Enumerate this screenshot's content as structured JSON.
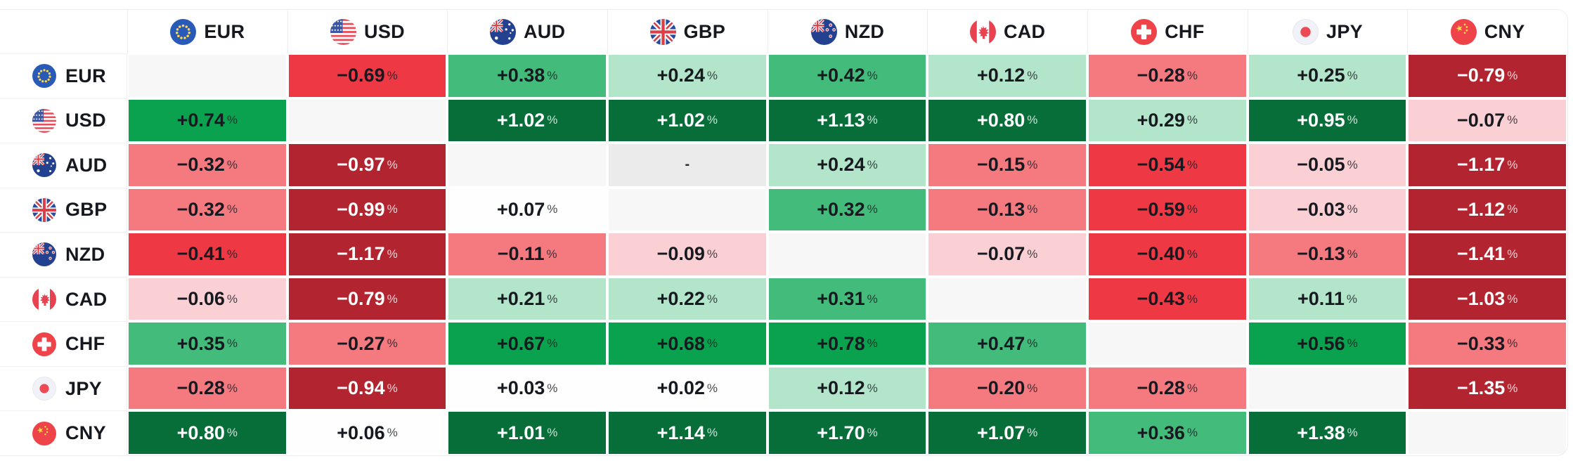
{
  "unit": "%",
  "currencies": [
    "EUR",
    "USD",
    "AUD",
    "GBP",
    "NZD",
    "CAD",
    "CHF",
    "JPY",
    "CNY"
  ],
  "flag_icons": {
    "EUR": "eur-flag-icon",
    "USD": "usd-flag-icon",
    "AUD": "aud-flag-icon",
    "GBP": "gbp-flag-icon",
    "NZD": "nzd-flag-icon",
    "CAD": "cad-flag-icon",
    "CHF": "chf-flag-icon",
    "JPY": "jpy-flag-icon",
    "CNY": "cny-flag-icon"
  },
  "chart_data": {
    "type": "heatmap",
    "unit": "%",
    "columns": [
      "EUR",
      "USD",
      "AUD",
      "GBP",
      "NZD",
      "CAD",
      "CHF",
      "JPY",
      "CNY"
    ],
    "rows": [
      "EUR",
      "USD",
      "AUD",
      "GBP",
      "NZD",
      "CAD",
      "CHF",
      "JPY",
      "CNY"
    ],
    "values": [
      [
        null,
        -0.69,
        0.38,
        0.24,
        0.42,
        0.12,
        -0.28,
        0.25,
        -0.79
      ],
      [
        0.74,
        null,
        1.02,
        1.02,
        1.13,
        0.8,
        0.29,
        0.95,
        -0.07
      ],
      [
        -0.32,
        -0.97,
        null,
        "-",
        0.24,
        -0.15,
        -0.54,
        -0.05,
        -1.17
      ],
      [
        -0.32,
        -0.99,
        0.07,
        null,
        0.32,
        -0.13,
        -0.59,
        -0.03,
        -1.12
      ],
      [
        -0.41,
        -1.17,
        -0.11,
        -0.09,
        null,
        -0.07,
        -0.4,
        -0.13,
        -1.41
      ],
      [
        -0.06,
        -0.79,
        0.21,
        0.22,
        0.31,
        null,
        -0.43,
        0.11,
        -1.03
      ],
      [
        0.35,
        -0.27,
        0.67,
        0.68,
        0.78,
        0.47,
        null,
        0.56,
        -0.33
      ],
      [
        -0.28,
        -0.94,
        0.03,
        0.02,
        0.12,
        -0.2,
        -0.28,
        null,
        -1.35
      ],
      [
        0.8,
        0.06,
        1.01,
        1.14,
        1.7,
        1.07,
        0.36,
        1.38,
        null
      ]
    ]
  },
  "palette": {
    "diagonal_bg": "#f7f7f7",
    "dash_bg": "#ebebeb",
    "header_text": "#15181e",
    "value_text": "#16191f",
    "value_text_light": "#ffffff",
    "card_border": "#ededed",
    "green_buckets": [
      {
        "max": 0.095,
        "bg": "#fdfefd",
        "text": "#16191f"
      },
      {
        "max": 0.295,
        "bg": "#b2e5c9",
        "text": "#16191f"
      },
      {
        "max": 0.5,
        "bg": "#43bc7b",
        "text": "#16191f"
      },
      {
        "max": 0.79,
        "bg": "#0ba24f",
        "text": "#16191f"
      },
      {
        "max": 99,
        "bg": "#076e3a",
        "text": "#ffffff"
      }
    ],
    "red_buckets": [
      {
        "max": 0.095,
        "bg": "#fbd0d5",
        "text": "#16191f"
      },
      {
        "max": 0.38,
        "bg": "#f57a80",
        "text": "#16191f"
      },
      {
        "max": 0.76,
        "bg": "#ee3945",
        "text": "#16191f"
      },
      {
        "max": 99,
        "bg": "#b2242f",
        "text": "#ffffff"
      }
    ]
  }
}
